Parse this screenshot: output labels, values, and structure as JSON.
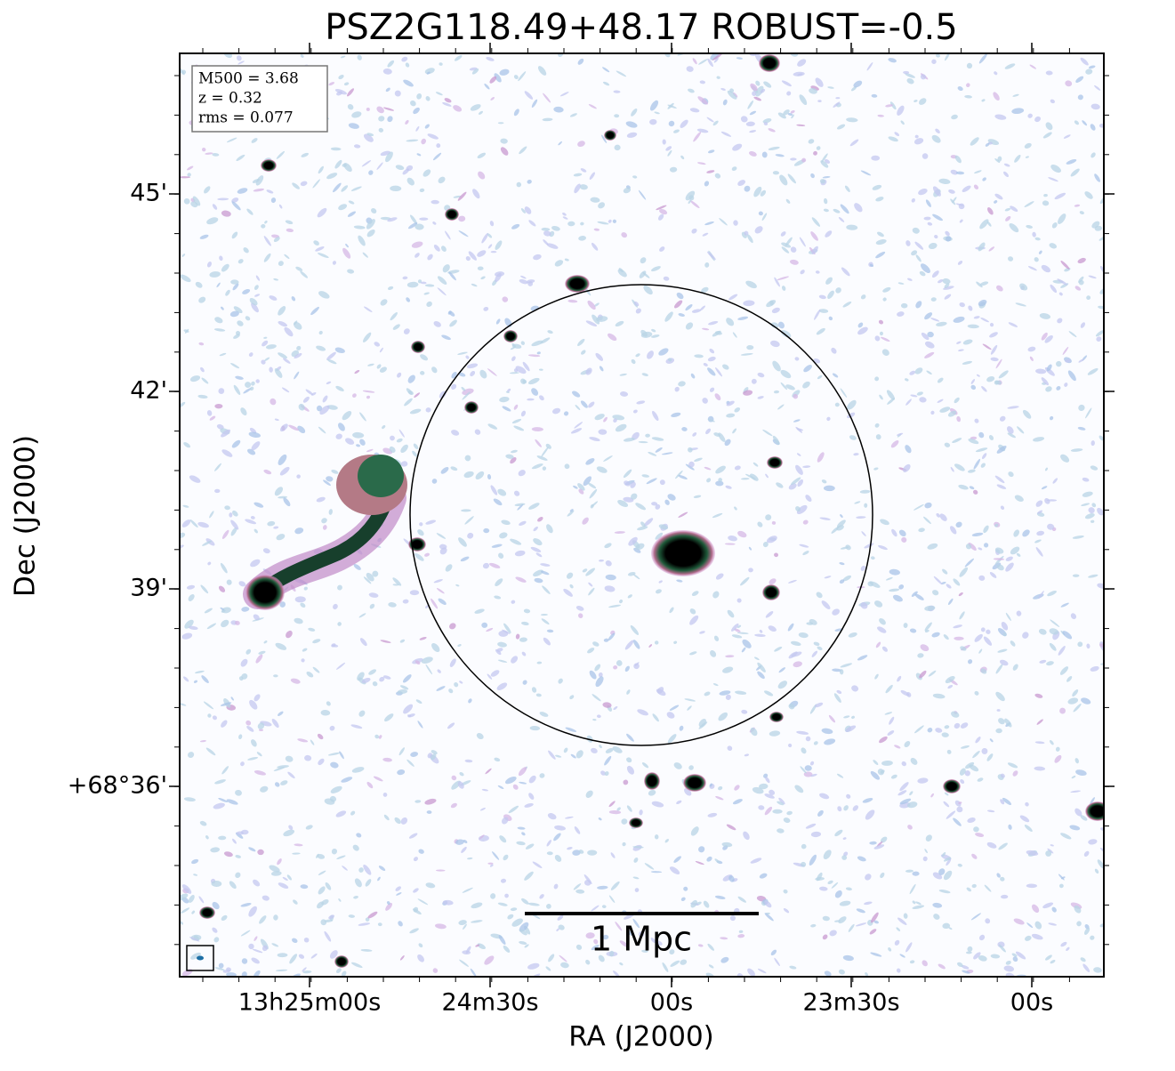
{
  "title": "PSZ2G118.49+48.17 ROBUST=-0.5",
  "x_axis": {
    "label": "RA (J2000)",
    "ticks": [
      "13h25m00s",
      "24m30s",
      "00s",
      "23m30s",
      "00s"
    ]
  },
  "y_axis": {
    "label": "Dec (J2000)",
    "ticks": [
      "45'",
      "42'",
      "39'",
      "+68°36'"
    ]
  },
  "info_box": [
    "M500 = 3.68",
    "z = 0.32",
    "rms = 0.077"
  ],
  "scale_bar": "1 Mpc"
}
